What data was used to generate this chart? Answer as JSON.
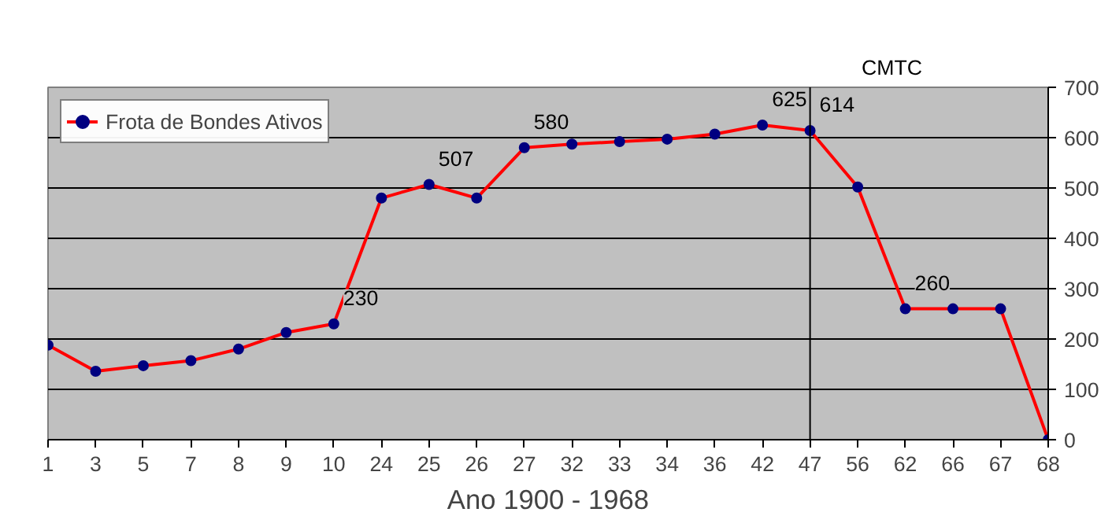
{
  "chart_data": {
    "type": "line",
    "xlabel": "Ano 1900 - 1968",
    "categories": [
      "1",
      "3",
      "5",
      "7",
      "8",
      "9",
      "10",
      "24",
      "25",
      "26",
      "27",
      "32",
      "33",
      "34",
      "36",
      "42",
      "47",
      "56",
      "62",
      "66",
      "67",
      "68"
    ],
    "series": [
      {
        "name": "Frota de Bondes Ativos",
        "color": "#ff0000",
        "values": [
          188,
          136,
          147,
          157,
          180,
          213,
          230,
          480,
          507,
          480,
          580,
          587,
          592,
          597,
          607,
          625,
          614,
          502,
          260,
          260,
          260,
          0
        ],
        "value_labels": [
          null,
          null,
          null,
          null,
          null,
          null,
          "230",
          null,
          "507",
          null,
          "580",
          null,
          null,
          null,
          null,
          "625",
          "614",
          null,
          "260",
          null,
          null,
          null
        ]
      }
    ],
    "ylim": [
      0,
      700
    ],
    "yticks": [
      0,
      100,
      200,
      300,
      400,
      500,
      600,
      700
    ],
    "grid": "y",
    "legend": "top",
    "marker": "circle",
    "line_style": "solid",
    "ref_lines": [
      {
        "axis": "x",
        "value": "47",
        "color": "#000000"
      }
    ],
    "annotations": [
      "CMTC"
    ]
  }
}
